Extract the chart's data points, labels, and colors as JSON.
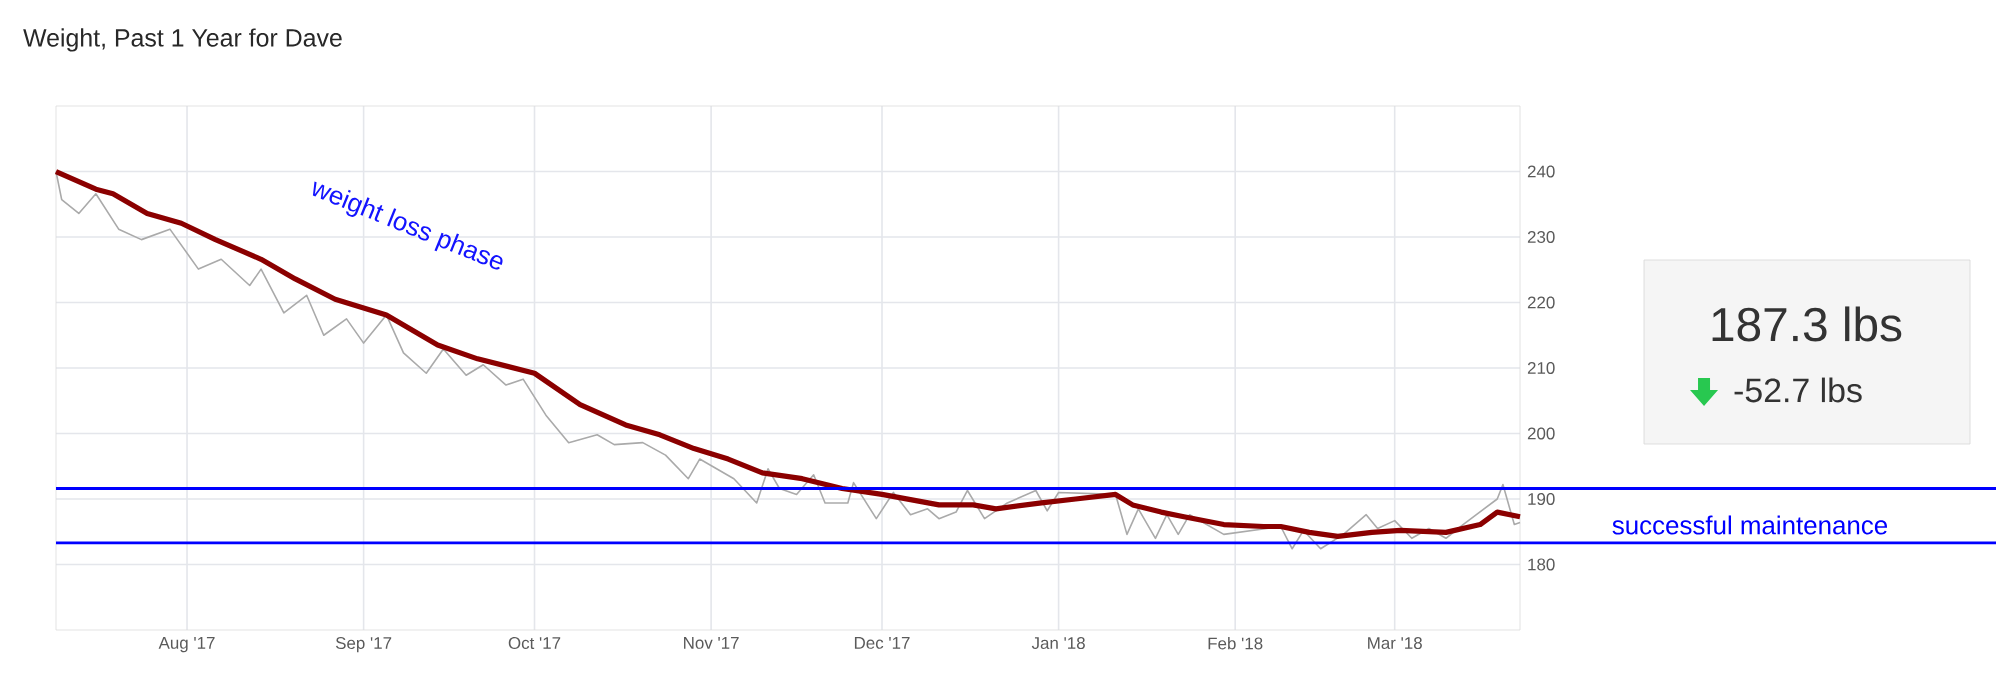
{
  "chart_data": [
    {
      "type": "line",
      "title": "Weight, Past 1 Year for Dave",
      "xlim": [
        "2017-07-09",
        "2018-03-23"
      ],
      "xticks": [
        {
          "value": "2017-08-01",
          "label": "Aug '17"
        },
        {
          "value": "2017-09-01",
          "label": "Sep '17"
        },
        {
          "value": "2017-10-01",
          "label": "Oct '17"
        },
        {
          "value": "2017-11-01",
          "label": "Nov '17"
        },
        {
          "value": "2017-12-01",
          "label": "Dec '17"
        },
        {
          "value": "2018-01-01",
          "label": "Jan '18"
        },
        {
          "value": "2018-02-01",
          "label": "Feb '18"
        },
        {
          "value": "2018-03-01",
          "label": "Mar '18"
        }
      ],
      "ylim": [
        170,
        250
      ],
      "yticks": [
        180,
        190,
        200,
        210,
        220,
        230,
        240
      ],
      "grid": true,
      "marker": "none",
      "line_style": "solid",
      "series": [
        {
          "color": "#aaaaaa",
          "x": [
            "2017-07-09",
            "2017-07-10",
            "2017-07-13",
            "2017-07-16",
            "2017-07-20",
            "2017-07-24",
            "2017-07-29",
            "2017-08-03",
            "2017-08-07",
            "2017-08-12",
            "2017-08-14",
            "2017-08-18",
            "2017-08-22",
            "2017-08-25",
            "2017-08-29",
            "2017-09-01",
            "2017-09-05",
            "2017-09-08",
            "2017-09-12",
            "2017-09-15",
            "2017-09-19",
            "2017-09-22",
            "2017-09-26",
            "2017-09-29",
            "2017-10-03",
            "2017-10-07",
            "2017-10-12",
            "2017-10-15",
            "2017-10-20",
            "2017-10-24",
            "2017-10-28",
            "2017-10-30",
            "2017-11-05",
            "2017-11-09",
            "2017-11-11",
            "2017-11-13",
            "2017-11-16",
            "2017-11-19",
            "2017-11-21",
            "2017-11-25",
            "2017-11-26",
            "2017-11-30",
            "2017-12-03",
            "2017-12-06",
            "2017-12-09",
            "2017-12-11",
            "2017-12-14",
            "2017-12-16",
            "2017-12-19",
            "2017-12-23",
            "2017-12-28",
            "2017-12-30",
            "2018-01-01",
            "2018-01-11",
            "2018-01-13",
            "2018-01-15",
            "2018-01-18",
            "2018-01-20",
            "2018-01-22",
            "2018-01-24",
            "2018-01-30",
            "2018-02-09",
            "2018-02-11",
            "2018-02-13",
            "2018-02-16",
            "2018-02-20",
            "2018-02-24",
            "2018-02-26",
            "2018-03-01",
            "2018-03-04",
            "2018-03-07",
            "2018-03-10",
            "2018-03-13",
            "2018-03-19",
            "2018-03-20",
            "2018-03-22",
            "2018-03-23"
          ],
          "values": [
            240.0,
            235.7,
            233.6,
            236.6,
            231.2,
            229.6,
            231.2,
            225.1,
            226.6,
            222.6,
            225.1,
            218.4,
            221.1,
            215.0,
            217.5,
            213.8,
            218.1,
            212.3,
            209.2,
            212.9,
            208.9,
            210.5,
            207.4,
            208.3,
            202.8,
            198.6,
            199.8,
            198.3,
            198.6,
            196.7,
            193.1,
            196.1,
            193.1,
            189.4,
            194.6,
            191.6,
            190.7,
            193.7,
            189.4,
            189.4,
            192.5,
            187.0,
            191.0,
            187.6,
            188.5,
            187.0,
            188.0,
            191.3,
            187.0,
            189.4,
            191.3,
            188.2,
            191.0,
            190.7,
            184.6,
            188.5,
            184.0,
            187.6,
            184.6,
            187.6,
            184.6,
            185.8,
            182.4,
            185.2,
            182.4,
            184.6,
            187.6,
            185.5,
            186.7,
            184.0,
            185.5,
            184.0,
            186.1,
            190.0,
            192.2,
            186.1,
            186.4
          ]
        },
        {
          "color": "#8b0000",
          "x": [
            "2017-07-09",
            "2017-07-16",
            "2017-07-19",
            "2017-07-25",
            "2017-07-31",
            "2017-08-06",
            "2017-08-14",
            "2017-08-20",
            "2017-08-27",
            "2017-09-05",
            "2017-09-14",
            "2017-09-21",
            "2017-10-01",
            "2017-10-09",
            "2017-10-17",
            "2017-10-23",
            "2017-10-29",
            "2017-11-04",
            "2017-11-10",
            "2017-11-17",
            "2017-11-24",
            "2017-12-01",
            "2017-12-11",
            "2017-12-17",
            "2017-12-21",
            "2017-12-29",
            "2018-01-04",
            "2018-01-11",
            "2018-01-14",
            "2018-01-19",
            "2018-01-23",
            "2018-01-30",
            "2018-02-06",
            "2018-02-09",
            "2018-02-14",
            "2018-02-19",
            "2018-02-25",
            "2018-03-02",
            "2018-03-10",
            "2018-03-16",
            "2018-03-19",
            "2018-03-23"
          ],
          "values": [
            240.0,
            237.3,
            236.6,
            233.6,
            232.1,
            229.6,
            226.6,
            223.6,
            220.5,
            218.1,
            213.5,
            211.4,
            209.2,
            204.4,
            201.3,
            199.8,
            197.7,
            196.1,
            194.0,
            193.1,
            191.6,
            190.7,
            189.1,
            189.1,
            188.5,
            189.4,
            190.0,
            190.7,
            189.1,
            188.0,
            187.3,
            186.1,
            185.8,
            185.8,
            184.9,
            184.3,
            184.9,
            185.2,
            184.9,
            186.1,
            188.0,
            187.3
          ]
        }
      ],
      "ref_lines": [
        {
          "axis": "y",
          "value": 191.6,
          "color": "#0000ff"
        },
        {
          "axis": "y",
          "value": 183.3,
          "label": "successful maintenance",
          "color": "#0000ff"
        }
      ],
      "annotations": [
        "weight loss phase"
      ]
    },
    {
      "type": "other",
      "title": "187.3 lbs",
      "annotations": [
        "-52.7 lbs"
      ]
    }
  ]
}
